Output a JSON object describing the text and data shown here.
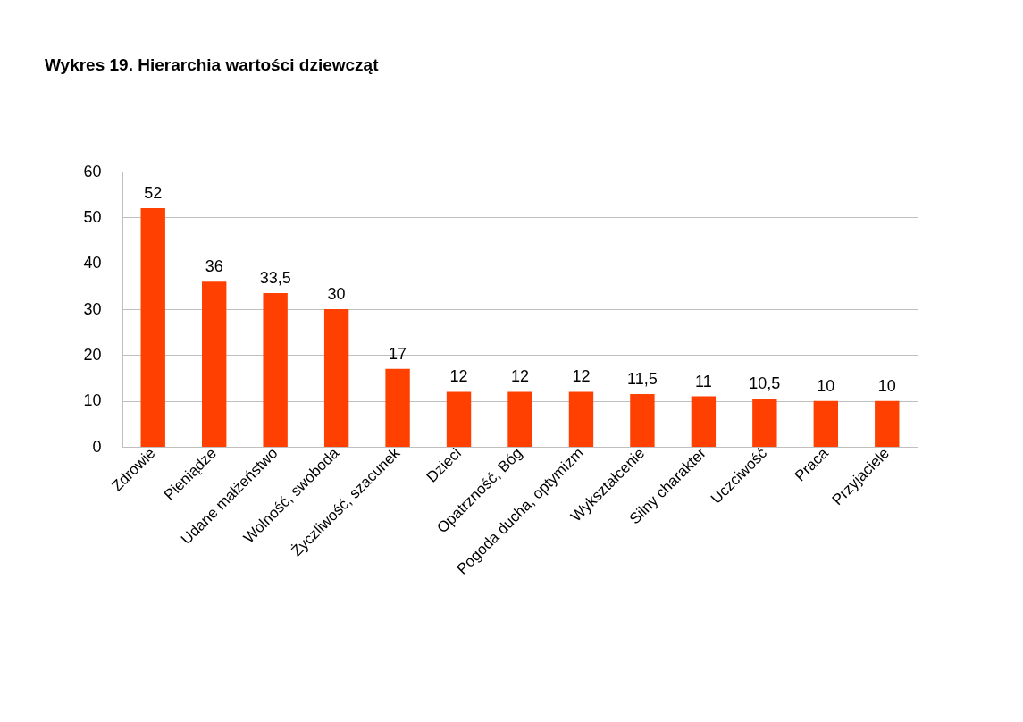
{
  "chart_data": {
    "type": "bar",
    "title": "Wykres 19. Hierarchia wartości dziewcząt",
    "categories": [
      "Zdrowie",
      "Pieniądze",
      "Udane małżeństwo",
      "Wolność, swoboda",
      "Życzliwość, szacunek",
      "Dzieci",
      "Opatrzność, Bóg",
      "Pogoda ducha, optymizm",
      "Wykształcenie",
      "Silny charakter",
      "Uczciwość",
      "Praca",
      "Przyjaciele"
    ],
    "values": [
      52,
      36,
      33.5,
      30,
      17,
      12,
      12,
      12,
      11.5,
      11,
      10.5,
      10,
      10
    ],
    "value_labels": [
      "52",
      "36",
      "33,5",
      "30",
      "17",
      "12",
      "12",
      "12",
      "11,5",
      "11",
      "10,5",
      "10",
      "10"
    ],
    "color": "#ff4000",
    "ylim": [
      0,
      60
    ],
    "yticks": [
      0,
      10,
      20,
      30,
      40,
      50,
      60
    ],
    "grid": "y"
  }
}
